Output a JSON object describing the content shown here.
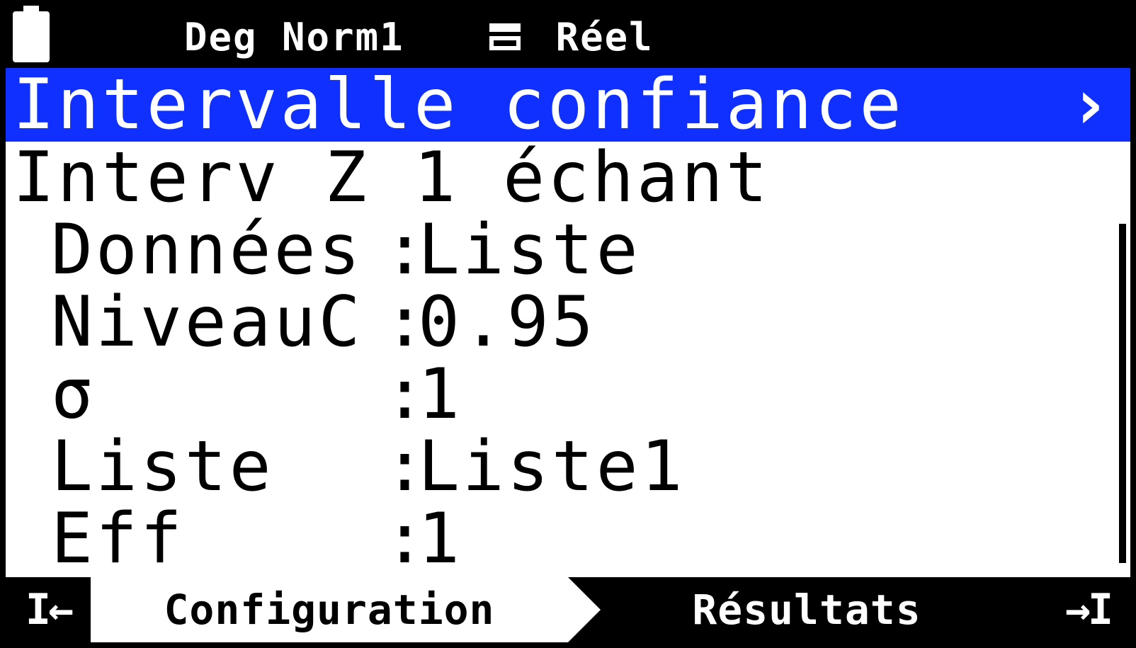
{
  "colors": {
    "highlight_bg": "#1030ff",
    "highlight_fg": "#ffffff",
    "bg": "#ffffff",
    "fg": "#000000",
    "status_bg": "#000000",
    "status_fg": "#ffffff"
  },
  "status": {
    "mode": "Deg Norm1",
    "domain": "Réel"
  },
  "title": {
    "text": "Intervalle confiance",
    "chevron": "›"
  },
  "subtitle": "Interv Z 1 échant",
  "params": [
    {
      "label": "Données",
      "value": "Liste"
    },
    {
      "label": "NiveauC",
      "value": "0.95"
    },
    {
      "label": "σ",
      "value": "1"
    },
    {
      "label": "Liste",
      "value": "Liste1"
    },
    {
      "label": "Eff",
      "value": "1"
    }
  ],
  "tabs": {
    "left_arrow": "I←",
    "active": "Configuration",
    "inactive": "Résultats",
    "right_arrow": "→I"
  }
}
